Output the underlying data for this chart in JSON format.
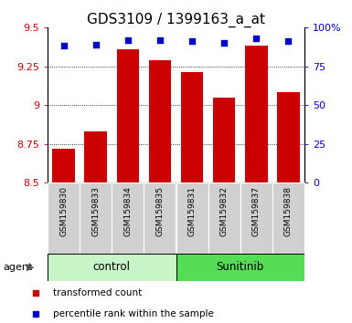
{
  "title": "GDS3109 / 1399163_a_at",
  "samples": [
    "GSM159830",
    "GSM159833",
    "GSM159834",
    "GSM159835",
    "GSM159831",
    "GSM159832",
    "GSM159837",
    "GSM159838"
  ],
  "bar_values": [
    8.72,
    8.83,
    9.36,
    9.29,
    9.21,
    9.05,
    9.38,
    9.08
  ],
  "dot_values": [
    88,
    89,
    92,
    92,
    91,
    90,
    93,
    91
  ],
  "groups": [
    {
      "label": "control",
      "start": 0,
      "end": 4,
      "color": "#c8f5c8"
    },
    {
      "label": "Sunitinib",
      "start": 4,
      "end": 8,
      "color": "#55dd55"
    }
  ],
  "agent_label": "agent",
  "ylim_left": [
    8.5,
    9.5
  ],
  "ylim_right": [
    0,
    100
  ],
  "yticks_left": [
    8.5,
    8.75,
    9.0,
    9.25,
    9.5
  ],
  "ytick_labels_left": [
    "8.5",
    "8.75",
    "9",
    "9.25",
    "9.5"
  ],
  "yticks_right": [
    0,
    25,
    50,
    75,
    100
  ],
  "ytick_labels_right": [
    "0",
    "25",
    "50",
    "75",
    "100%"
  ],
  "grid_values": [
    8.75,
    9.0,
    9.25
  ],
  "bar_color": "#cc0000",
  "dot_color": "#0000cc",
  "bar_width": 0.7,
  "title_fontsize": 11,
  "legend_label_bar": "transformed count",
  "legend_label_dot": "percentile rank within the sample",
  "bg_color_fig": "#ffffff",
  "sample_bg": "#d0d0d0",
  "n_samples": 8
}
